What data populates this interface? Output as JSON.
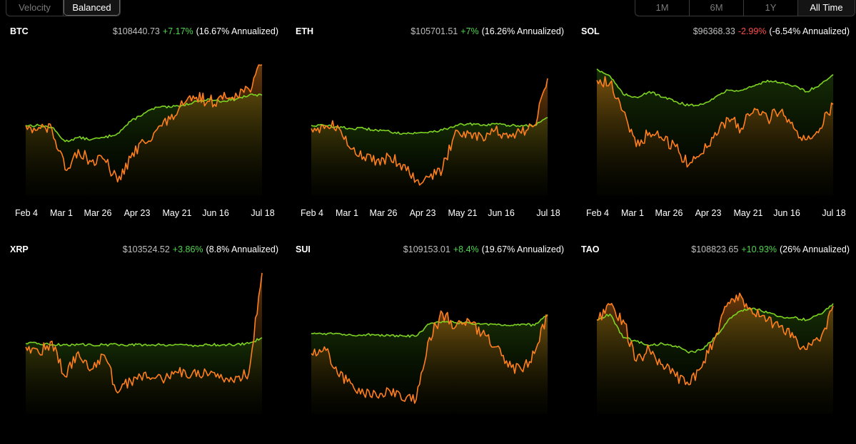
{
  "controls": {
    "mode_options": [
      {
        "label": "Velocity",
        "active": false
      },
      {
        "label": "Balanced",
        "active": true
      }
    ],
    "range_options": [
      {
        "label": "1M",
        "active": false
      },
      {
        "label": "6M",
        "active": false
      },
      {
        "label": "1Y",
        "active": false
      },
      {
        "label": "All Time",
        "active": true
      }
    ]
  },
  "colors": {
    "background": "#000000",
    "strategy_line": "#ff7f1e",
    "benchmark_line": "#7dd321",
    "positive": "#4fd44f",
    "negative": "#ff4d4d"
  },
  "chart_data": [
    {
      "type": "line",
      "asset": "BTC",
      "price": "$108440.73",
      "change": "+7.17%",
      "change_sign": "pos",
      "annualized": "(16.67% Annualized)",
      "x_ticks": [
        "Feb 4",
        "Mar 1",
        "Mar 26",
        "Apr 23",
        "May 21",
        "Jun 16",
        "Jul 18"
      ],
      "ylim": [
        0.65,
        1.35
      ],
      "series": [
        {
          "role": "benchmark",
          "values": [
            1.0,
            1.0,
            0.99,
            0.92,
            0.94,
            0.93,
            0.94,
            0.96,
            1.02,
            1.06,
            1.09,
            1.09,
            1.1,
            1.12,
            1.13,
            1.12,
            1.13,
            1.15,
            1.15
          ]
        },
        {
          "role": "strategy",
          "values": [
            1.0,
            0.99,
            0.98,
            0.78,
            0.88,
            0.82,
            0.83,
            0.72,
            0.84,
            0.92,
            0.98,
            1.03,
            1.1,
            1.14,
            1.12,
            1.13,
            1.16,
            1.18,
            1.3
          ]
        }
      ]
    },
    {
      "type": "line",
      "asset": "ETH",
      "price": "$105701.51",
      "change": "+7%",
      "change_sign": "pos",
      "annualized": "(16.26% Annualized)",
      "x_ticks": [
        "Feb 4",
        "Mar 1",
        "Mar 26",
        "Apr 23",
        "May 21",
        "Jun 16",
        "Jul 18"
      ],
      "ylim": [
        0.55,
        1.45
      ],
      "series": [
        {
          "role": "benchmark",
          "values": [
            1.0,
            1.0,
            0.99,
            0.98,
            0.98,
            0.97,
            0.96,
            0.95,
            0.95,
            0.96,
            0.97,
            1.0,
            1.01,
            1.0,
            1.01,
            1.0,
            1.0,
            1.0,
            1.05
          ]
        },
        {
          "role": "strategy",
          "values": [
            0.98,
            0.98,
            1.0,
            0.85,
            0.8,
            0.78,
            0.8,
            0.75,
            0.65,
            0.67,
            0.72,
            0.97,
            0.95,
            0.93,
            0.97,
            0.92,
            0.95,
            1.0,
            1.3
          ]
        }
      ]
    },
    {
      "type": "line",
      "asset": "SOL",
      "price": "$96368.33",
      "change": "-2.99%",
      "change_sign": "neg",
      "annualized": "(-6.54% Annualized)",
      "x_ticks": [
        "Feb 4",
        "Mar 1",
        "Mar 26",
        "Apr 23",
        "May 21",
        "Jun 16",
        "Jul 18"
      ],
      "ylim": [
        0.5,
        1.5
      ],
      "series": [
        {
          "role": "benchmark",
          "values": [
            1.4,
            1.35,
            1.22,
            1.2,
            1.24,
            1.2,
            1.17,
            1.14,
            1.15,
            1.2,
            1.25,
            1.25,
            1.28,
            1.32,
            1.3,
            1.28,
            1.24,
            1.29,
            1.36
          ]
        },
        {
          "role": "strategy",
          "values": [
            1.32,
            1.3,
            1.1,
            0.85,
            0.95,
            0.9,
            0.85,
            0.72,
            0.8,
            0.95,
            1.05,
            0.98,
            1.12,
            1.05,
            1.1,
            0.98,
            0.9,
            0.98,
            1.15
          ]
        }
      ]
    },
    {
      "type": "line",
      "asset": "XRP",
      "price": "$103524.52",
      "change": "+3.86%",
      "change_sign": "pos",
      "annualized": "(8.8% Annualized)",
      "x_ticks": [],
      "ylim": [
        0.4,
        1.6
      ],
      "series": [
        {
          "role": "benchmark",
          "values": [
            1.0,
            1.0,
            0.99,
            0.99,
            0.99,
            0.99,
            0.99,
            0.99,
            0.99,
            0.99,
            0.99,
            0.99,
            0.99,
            0.98,
            0.99,
            0.99,
            0.99,
            1.0,
            1.05
          ]
        },
        {
          "role": "strategy",
          "values": [
            0.97,
            0.92,
            1.02,
            0.72,
            0.93,
            0.78,
            0.9,
            0.58,
            0.68,
            0.75,
            0.72,
            0.7,
            0.78,
            0.72,
            0.74,
            0.7,
            0.72,
            0.75,
            1.6
          ]
        }
      ]
    },
    {
      "type": "line",
      "asset": "SUI",
      "price": "$109153.01",
      "change": "+8.4%",
      "change_sign": "pos",
      "annualized": "(19.67% Annualized)",
      "x_ticks": [],
      "ylim": [
        0.45,
        1.5
      ],
      "series": [
        {
          "role": "benchmark",
          "values": [
            1.05,
            1.05,
            1.05,
            1.04,
            1.04,
            1.04,
            1.03,
            1.03,
            1.03,
            1.12,
            1.14,
            1.13,
            1.13,
            1.12,
            1.12,
            1.11,
            1.12,
            1.11,
            1.19
          ]
        },
        {
          "role": "strategy",
          "values": [
            0.9,
            0.95,
            0.75,
            0.68,
            0.6,
            0.58,
            0.62,
            0.55,
            0.56,
            1.02,
            1.2,
            1.1,
            1.15,
            1.05,
            0.95,
            0.8,
            0.78,
            0.9,
            1.18
          ]
        }
      ]
    },
    {
      "type": "line",
      "asset": "TAO",
      "price": "$108823.65",
      "change": "+10.93%",
      "change_sign": "pos",
      "annualized": "(26% Annualized)",
      "x_ticks": [],
      "ylim": [
        0.4,
        1.6
      ],
      "series": [
        {
          "role": "benchmark",
          "values": [
            1.2,
            1.25,
            1.05,
            1.02,
            0.98,
            1.0,
            0.98,
            0.92,
            0.95,
            1.05,
            1.2,
            1.28,
            1.3,
            1.26,
            1.23,
            1.22,
            1.2,
            1.25,
            1.34
          ]
        },
        {
          "role": "strategy",
          "values": [
            1.2,
            1.33,
            1.2,
            0.85,
            0.95,
            0.82,
            0.72,
            0.65,
            0.8,
            1.05,
            1.35,
            1.4,
            1.25,
            1.2,
            1.15,
            1.05,
            0.95,
            1.02,
            1.32
          ]
        }
      ]
    }
  ]
}
